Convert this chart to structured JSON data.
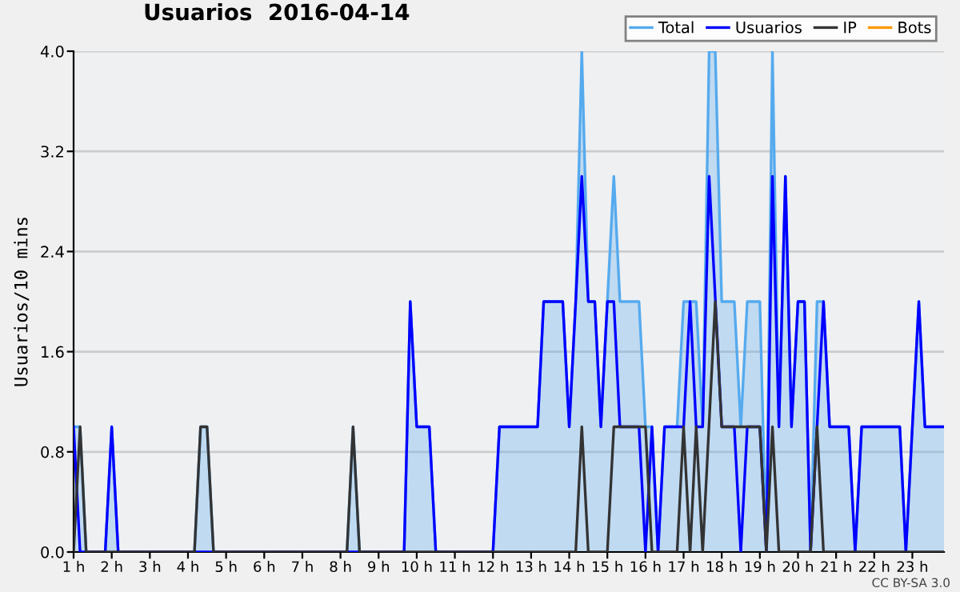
{
  "chart_data": {
    "type": "line",
    "title": "Usuarios  2016-04-14",
    "ylabel": "Usuarios/10 mins",
    "annotations": [
      "CC BY-SA 3.0"
    ],
    "xlim": [
      1,
      23.83
    ],
    "xticks": [
      {
        "value": 1,
        "label": "1 h"
      },
      {
        "value": 2,
        "label": "2 h"
      },
      {
        "value": 3,
        "label": "3 h"
      },
      {
        "value": 4,
        "label": "4 h"
      },
      {
        "value": 5,
        "label": "5 h"
      },
      {
        "value": 6,
        "label": "6 h"
      },
      {
        "value": 7,
        "label": "7 h"
      },
      {
        "value": 8,
        "label": "8 h"
      },
      {
        "value": 9,
        "label": "9 h"
      },
      {
        "value": 10,
        "label": "10 h"
      },
      {
        "value": 11,
        "label": "11 h"
      },
      {
        "value": 12,
        "label": "12 h"
      },
      {
        "value": 13,
        "label": "13 h"
      },
      {
        "value": 14,
        "label": "14 h"
      },
      {
        "value": 15,
        "label": "15 h"
      },
      {
        "value": 16,
        "label": "16 h"
      },
      {
        "value": 17,
        "label": "17 h"
      },
      {
        "value": 18,
        "label": "18 h"
      },
      {
        "value": 19,
        "label": "19 h"
      },
      {
        "value": 20,
        "label": "20 h"
      },
      {
        "value": 21,
        "label": "21 h"
      },
      {
        "value": 22,
        "label": "22 h"
      },
      {
        "value": 23,
        "label": "23 h"
      }
    ],
    "ylim": [
      0,
      4
    ],
    "yticks": [
      {
        "value": 0,
        "label": "0.0"
      },
      {
        "value": 0.8,
        "label": "0.8"
      },
      {
        "value": 1.6,
        "label": "1.6"
      },
      {
        "value": 2.4,
        "label": "2.4"
      },
      {
        "value": 3.2,
        "label": "3.2"
      },
      {
        "value": 4,
        "label": "4.0"
      }
    ],
    "grid": "y",
    "legend": "top right",
    "series": [
      {
        "name": "Total",
        "type": "area",
        "color": "#55aaee",
        "x": [
          1,
          1.17,
          1.33,
          1.83,
          2,
          2.17,
          4.17,
          4.33,
          4.5,
          4.67,
          8.17,
          8.33,
          8.5,
          9.67,
          9.83,
          10,
          10.33,
          10.5,
          12,
          12.17,
          13.17,
          13.33,
          13.83,
          14,
          14.17,
          14.33,
          14.5,
          14.67,
          14.83,
          15,
          15.17,
          15.33,
          15.83,
          16,
          16.17,
          16.33,
          16.5,
          16.83,
          17,
          17.17,
          17.33,
          17.5,
          17.67,
          17.83,
          18,
          18.17,
          18.33,
          18.5,
          18.67,
          19,
          19.17,
          19.33,
          19.5,
          19.67,
          19.83,
          20,
          20.17,
          20.33,
          20.5,
          20.67,
          20.83,
          21.33,
          21.5,
          21.67,
          22.67,
          22.83,
          23.17,
          23.33,
          23.83
        ],
        "values": [
          1,
          1,
          0,
          0,
          1,
          0,
          0,
          1,
          1,
          0,
          0,
          1,
          0,
          0,
          2,
          1,
          1,
          0,
          0,
          1,
          1,
          2,
          2,
          1,
          2,
          4,
          2,
          2,
          1,
          2,
          3,
          2,
          2,
          1,
          1,
          0,
          1,
          1,
          2,
          2,
          2,
          1,
          4,
          4,
          2,
          2,
          2,
          1,
          2,
          2,
          0,
          4,
          1,
          3,
          1,
          2,
          2,
          0,
          2,
          2,
          1,
          1,
          0,
          1,
          1,
          0,
          2,
          1,
          1
        ]
      },
      {
        "name": "Usuarios",
        "type": "line",
        "color": "#0000ff",
        "x": [
          1,
          1.17,
          1.83,
          2,
          2.17,
          9.67,
          9.83,
          10,
          10.33,
          10.5,
          12,
          12.17,
          13.17,
          13.33,
          13.83,
          14,
          14.17,
          14.33,
          14.5,
          14.67,
          14.83,
          15,
          15.17,
          15.33,
          15.83,
          16,
          16.17,
          16.33,
          16.5,
          17,
          17.17,
          17.33,
          17.5,
          17.67,
          18,
          18.33,
          18.5,
          18.67,
          19,
          19.17,
          19.33,
          19.5,
          19.67,
          19.83,
          20,
          20.17,
          20.33,
          20.67,
          20.83,
          21.33,
          21.5,
          21.67,
          22.67,
          22.83,
          23.17,
          23.33,
          23.83
        ],
        "values": [
          1,
          0,
          0,
          1,
          0,
          0,
          2,
          1,
          1,
          0,
          0,
          1,
          1,
          2,
          2,
          1,
          2,
          3,
          2,
          2,
          1,
          2,
          2,
          1,
          1,
          0,
          1,
          0,
          1,
          1,
          2,
          1,
          1,
          3,
          1,
          1,
          0,
          1,
          1,
          0,
          3,
          1,
          3,
          1,
          2,
          2,
          0,
          2,
          1,
          1,
          0,
          1,
          1,
          0,
          2,
          1,
          1
        ]
      },
      {
        "name": "IP",
        "type": "line",
        "color": "#333333",
        "x": [
          1,
          1.17,
          1.33,
          4.17,
          4.33,
          4.5,
          4.67,
          8.17,
          8.33,
          8.5,
          14.17,
          14.33,
          14.5,
          15,
          15.17,
          16,
          16.17,
          16.83,
          17,
          17.17,
          17.33,
          17.5,
          17.83,
          18,
          18.33,
          19,
          19.17,
          19.33,
          19.5,
          20.33,
          20.5,
          20.67,
          23.83
        ],
        "values": [
          0,
          1,
          0,
          0,
          1,
          1,
          0,
          0,
          1,
          0,
          0,
          1,
          0,
          0,
          1,
          1,
          0,
          0,
          1,
          0,
          1,
          0,
          2,
          1,
          1,
          1,
          0,
          1,
          0,
          0,
          1,
          0,
          0
        ]
      },
      {
        "name": "Bots",
        "type": "line",
        "color": "#ff9900"
      }
    ]
  }
}
